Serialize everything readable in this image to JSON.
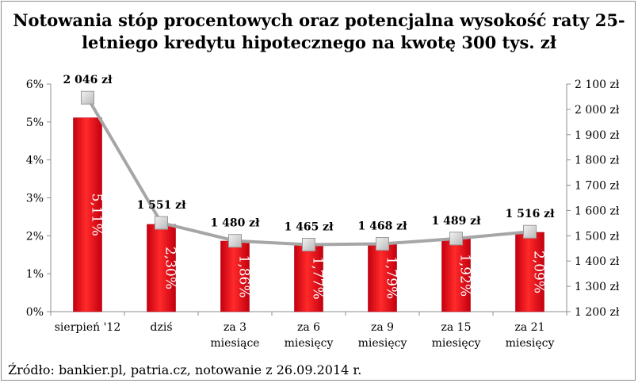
{
  "title_line1": "Notowania stóp procentowych oraz potencjalna wysokość raty 25-",
  "title_line2": "letniego kredytu hipotecznego na kwotę 300 tys. zł",
  "source": "Źródło: bankier.pl, patria.cz, notowanie z 26.09.2014 r.",
  "colors": {
    "bar": "#e3001b",
    "bar_edge": "#b00012",
    "line": "#a6a6a6",
    "marker": "#d9d9d9"
  },
  "chart_data": {
    "type": "bar",
    "categories": [
      [
        "sierpień '12"
      ],
      [
        "dziś"
      ],
      [
        "za 3",
        "miesiące"
      ],
      [
        "za 6",
        "miesięcy"
      ],
      [
        "za 9",
        "miesięcy"
      ],
      [
        "za 15",
        "miesięcy"
      ],
      [
        "za 21",
        "miesięcy"
      ]
    ],
    "series": [
      {
        "type": "bar",
        "axis": "left",
        "values": [
          5.11,
          2.3,
          1.86,
          1.77,
          1.79,
          1.92,
          2.09
        ],
        "labels": [
          "5,11%",
          "2,30%",
          "1,86%",
          "1,77%",
          "1,79%",
          "1,92%",
          "2,09%"
        ]
      },
      {
        "type": "line",
        "axis": "right",
        "values": [
          2046,
          1551,
          1480,
          1465,
          1468,
          1489,
          1516
        ],
        "labels": [
          "2 046 zł",
          "1 551 zł",
          "1 480 zł",
          "1 465 zł",
          "1 468 zł",
          "1 489 zł",
          "1 516 zł"
        ]
      }
    ],
    "y_left": {
      "min": 0,
      "max": 6,
      "ticks": [
        "0%",
        "1%",
        "2%",
        "3%",
        "4%",
        "5%",
        "6%"
      ]
    },
    "y_right": {
      "min": 1200,
      "max": 2100,
      "ticks": [
        "1 200 zł",
        "1 300 zł",
        "1 400 zł",
        "1 500 zł",
        "1 600 zł",
        "1 700 zł",
        "1 800 zł",
        "1 900 zł",
        "2 000 zł",
        "2 100 zł"
      ]
    },
    "grid": false,
    "legend": "none"
  }
}
